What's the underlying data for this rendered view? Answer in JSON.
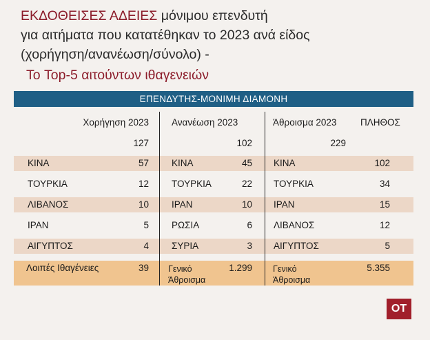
{
  "title": {
    "highlight": "ΕΚΔΟΘΕΙΣΕΣ ΑΔΕΙΕΣ",
    "line1_rest": " μόνιμου επενδυτή",
    "line2": "για αιτήματα που κατατέθηκαν το 2023 ανά είδος",
    "line3": "(χορήγηση/ανανέωση/σύνολο) -"
  },
  "subtitle": "Το Top-5 αιτούντων ιθαγενειών",
  "table": {
    "banner": "ΕΠΕΝΔΥΤΗΣ-ΜΟΝΙΜΗ ΔΙΑΜΟΝΗ",
    "headers": {
      "grant": "Χορήγηση 2023",
      "renewal": "Ανανέωση 2023",
      "sum": "Άθροισμα 2023",
      "count": "ΠΛΗΘΟΣ"
    },
    "totals": {
      "grant": "127",
      "renewal": "102",
      "sum": "229"
    },
    "rows": [
      {
        "g_country": "ΚΙΝΑ",
        "g_value": "57",
        "r_country": "ΚΙΝΑ",
        "r_value": "45",
        "s_country": "ΚΙΝΑ",
        "s_value": "102"
      },
      {
        "g_country": "ΤΟΥΡΚΙΑ",
        "g_value": "12",
        "r_country": "ΤΟΥΡΚΙΑ",
        "r_value": "22",
        "s_country": "ΤΟΥΡΚΙΑ",
        "s_value": "34"
      },
      {
        "g_country": "ΛΙΒΑΝΟΣ",
        "g_value": "10",
        "r_country": "ΙΡΑΝ",
        "r_value": "10",
        "s_country": "ΙΡΑΝ",
        "s_value": "15"
      },
      {
        "g_country": "ΙΡΑΝ",
        "g_value": "5",
        "r_country": "ΡΩΣΙΑ",
        "r_value": "6",
        "s_country": "ΛΙΒΑΝΟΣ",
        "s_value": "12"
      },
      {
        "g_country": "ΑΙΓΥΠΤΟΣ",
        "g_value": "4",
        "r_country": "ΣΥΡΙΑ",
        "r_value": "3",
        "s_country": "ΑΙΓΥΠΤΟΣ",
        "s_value": "5"
      }
    ],
    "footer": {
      "g_label": "Λοιπές Ιθαγένειες",
      "g_value": "39",
      "r_label": "Γενικό Άθροισμα",
      "r_value": "1.299",
      "s_label": "Γενικό Άθροισμα",
      "s_value": "5.355"
    }
  },
  "badge": "OT",
  "colors": {
    "title_red": "#8c1d2b",
    "banner_blue": "#1f5f85",
    "row_stripe": "#ecd7c7",
    "total_row": "#f0c48f",
    "badge_red": "#a11f2b"
  }
}
